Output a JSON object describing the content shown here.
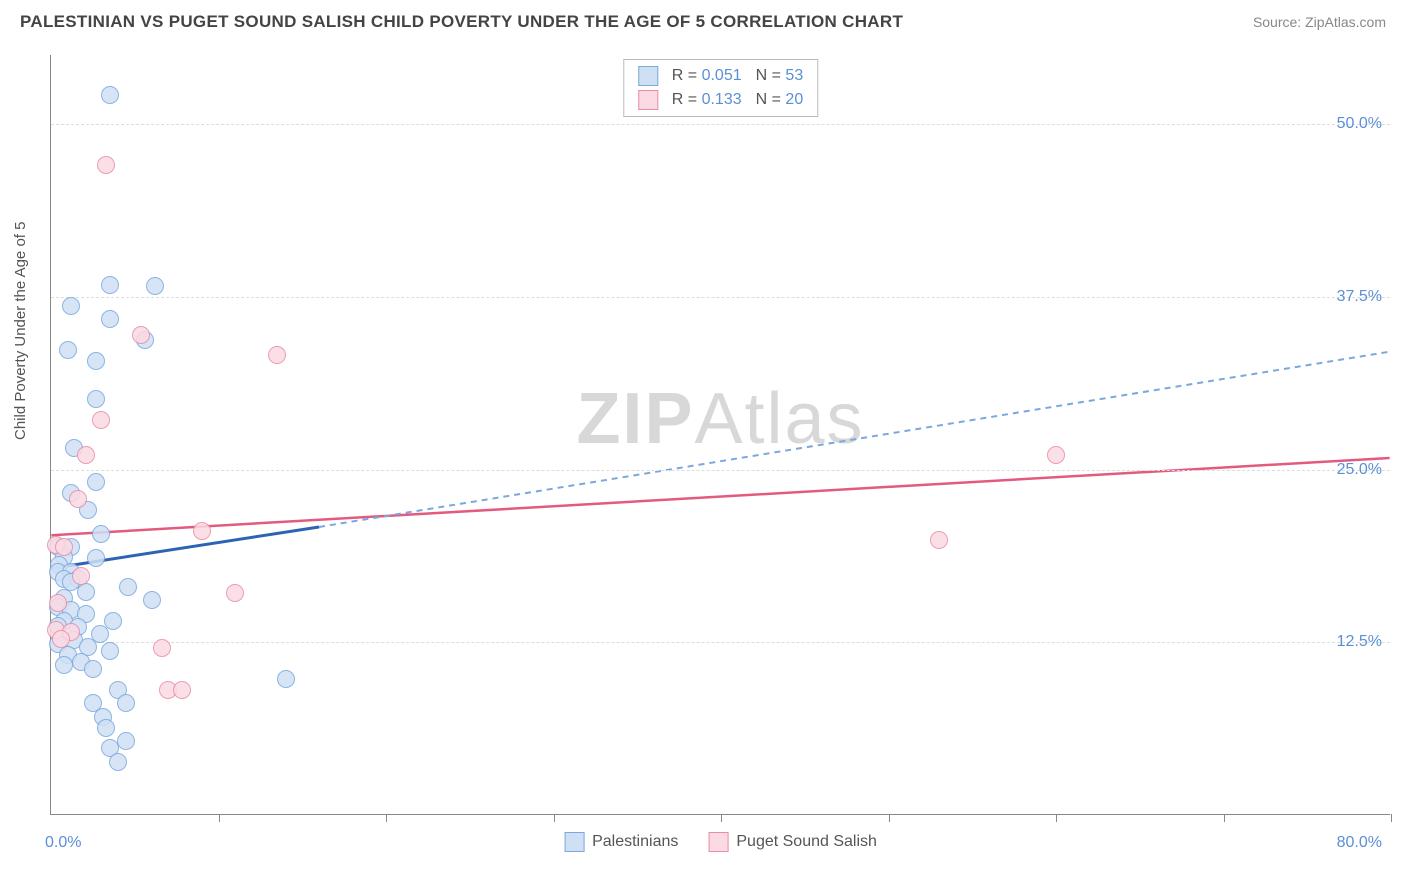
{
  "header": {
    "title": "PALESTINIAN VS PUGET SOUND SALISH CHILD POVERTY UNDER THE AGE OF 5 CORRELATION CHART",
    "source": "Source: ZipAtlas.com"
  },
  "chart": {
    "type": "scatter",
    "y_axis_label": "Child Poverty Under the Age of 5",
    "background_color": "#ffffff",
    "grid_color": "#dddddd",
    "axis_color": "#888888",
    "tick_label_color": "#5b8fd6",
    "xlim": [
      0,
      80
    ],
    "ylim": [
      0,
      55
    ],
    "x_ticks": [
      0,
      10,
      20,
      30,
      40,
      50,
      60,
      70,
      80
    ],
    "x_tick_labels_shown": {
      "0": "0.0%",
      "80": "80.0%"
    },
    "y_gridlines": [
      12.5,
      25.0,
      37.5,
      50.0
    ],
    "y_tick_labels": [
      "12.5%",
      "25.0%",
      "37.5%",
      "50.0%"
    ],
    "watermark": {
      "text_bold": "ZIP",
      "text_light": "Atlas",
      "color": "#d8d8d8",
      "fontsize": 72
    },
    "series": [
      {
        "name": "Palestinians",
        "marker_fill": "#cfe0f5",
        "marker_stroke": "#7aa8dd",
        "marker_size": 18,
        "marker_opacity": 0.85,
        "R": "0.051",
        "N": "53",
        "trend": {
          "x1": 0,
          "y1": 17.8,
          "x2_solid": 16,
          "y2_solid": 20.8,
          "x2": 80,
          "y2": 33.5,
          "color_solid": "#2d63b5",
          "color_dash": "#7aa8dd",
          "width": 3,
          "dash": "6,5"
        },
        "points": [
          [
            3.5,
            52.0
          ],
          [
            3.5,
            38.3
          ],
          [
            6.2,
            38.2
          ],
          [
            1.2,
            36.8
          ],
          [
            3.5,
            35.8
          ],
          [
            5.6,
            34.3
          ],
          [
            1.0,
            33.6
          ],
          [
            2.7,
            32.8
          ],
          [
            2.7,
            30.0
          ],
          [
            1.4,
            26.5
          ],
          [
            2.7,
            24.0
          ],
          [
            1.2,
            23.2
          ],
          [
            3.0,
            20.3
          ],
          [
            0.4,
            19.3
          ],
          [
            1.2,
            19.3
          ],
          [
            0.8,
            18.6
          ],
          [
            2.7,
            18.5
          ],
          [
            0.5,
            18.0
          ],
          [
            0.4,
            17.5
          ],
          [
            1.2,
            17.5
          ],
          [
            0.8,
            17.0
          ],
          [
            1.6,
            17.0
          ],
          [
            4.6,
            16.4
          ],
          [
            1.2,
            16.8
          ],
          [
            2.1,
            16.1
          ],
          [
            0.8,
            15.6
          ],
          [
            6.0,
            15.5
          ],
          [
            0.4,
            15.0
          ],
          [
            1.2,
            14.8
          ],
          [
            2.1,
            14.5
          ],
          [
            3.7,
            14.0
          ],
          [
            0.8,
            14.0
          ],
          [
            1.6,
            13.5
          ],
          [
            0.4,
            13.6
          ],
          [
            2.9,
            13.0
          ],
          [
            1.4,
            12.6
          ],
          [
            0.4,
            12.3
          ],
          [
            2.2,
            12.1
          ],
          [
            3.5,
            11.8
          ],
          [
            1.0,
            11.5
          ],
          [
            1.8,
            11.0
          ],
          [
            0.8,
            10.8
          ],
          [
            2.5,
            10.5
          ],
          [
            4.0,
            9.0
          ],
          [
            14.0,
            9.8
          ],
          [
            2.5,
            8.0
          ],
          [
            4.5,
            8.0
          ],
          [
            3.1,
            7.0
          ],
          [
            3.3,
            6.2
          ],
          [
            4.5,
            5.3
          ],
          [
            3.5,
            4.8
          ],
          [
            4.0,
            3.8
          ],
          [
            2.2,
            22.0
          ]
        ]
      },
      {
        "name": "Puget Sound Salish",
        "marker_fill": "#fbdae3",
        "marker_stroke": "#e98ca6",
        "marker_size": 18,
        "marker_opacity": 0.85,
        "R": "0.133",
        "N": "20",
        "trend": {
          "x1": 0,
          "y1": 20.2,
          "x2": 80,
          "y2": 25.8,
          "color": "#e45a7f",
          "width": 2.5
        },
        "points": [
          [
            3.3,
            47.0
          ],
          [
            5.4,
            34.7
          ],
          [
            13.5,
            33.2
          ],
          [
            3.0,
            28.5
          ],
          [
            2.1,
            26.0
          ],
          [
            60.0,
            26.0
          ],
          [
            1.6,
            22.8
          ],
          [
            9.0,
            20.5
          ],
          [
            53.0,
            19.8
          ],
          [
            0.3,
            19.5
          ],
          [
            0.8,
            19.3
          ],
          [
            1.8,
            17.2
          ],
          [
            11.0,
            16.0
          ],
          [
            0.4,
            15.3
          ],
          [
            0.3,
            13.3
          ],
          [
            1.2,
            13.2
          ],
          [
            0.6,
            12.7
          ],
          [
            6.6,
            12.0
          ],
          [
            7.0,
            9.0
          ],
          [
            7.8,
            9.0
          ]
        ]
      }
    ],
    "legend_top": {
      "border_color": "#bbbbbb",
      "label_color": "#555555",
      "value_color": "#5b8fd6",
      "fontsize": 16
    },
    "legend_bottom": {
      "fontsize": 16,
      "label_color": "#555555"
    }
  }
}
